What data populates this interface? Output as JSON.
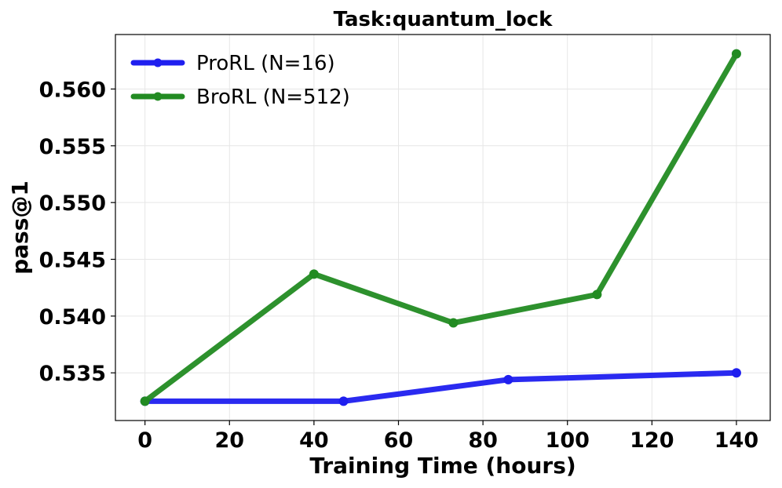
{
  "chart_data": {
    "type": "line",
    "title": "Task:quantum_lock",
    "xlabel": "Training Time (hours)",
    "ylabel": "pass@1",
    "xlim": [
      -7,
      148
    ],
    "ylim": [
      0.5308,
      0.5648
    ],
    "xticks": [
      0,
      20,
      40,
      60,
      80,
      100,
      120,
      140
    ],
    "yticks": [
      0.535,
      0.54,
      0.545,
      0.55,
      0.555,
      0.56
    ],
    "xtick_labels": [
      "0",
      "20",
      "40",
      "60",
      "80",
      "100",
      "120",
      "140"
    ],
    "ytick_labels": [
      "0.535",
      "0.540",
      "0.545",
      "0.550",
      "0.555",
      "0.560"
    ],
    "grid": true,
    "legend_position": "top-left",
    "series": [
      {
        "name": "ProRL (N=16)",
        "color": "#1f1fef",
        "x": [
          0,
          47,
          86,
          140
        ],
        "y": [
          0.5325,
          0.5325,
          0.5344,
          0.535
        ]
      },
      {
        "name": "BroRL (N=512)",
        "color": "#228b22",
        "x": [
          0,
          40,
          73,
          107,
          140
        ],
        "y": [
          0.5325,
          0.5437,
          0.5394,
          0.5419,
          0.5631
        ]
      }
    ]
  }
}
